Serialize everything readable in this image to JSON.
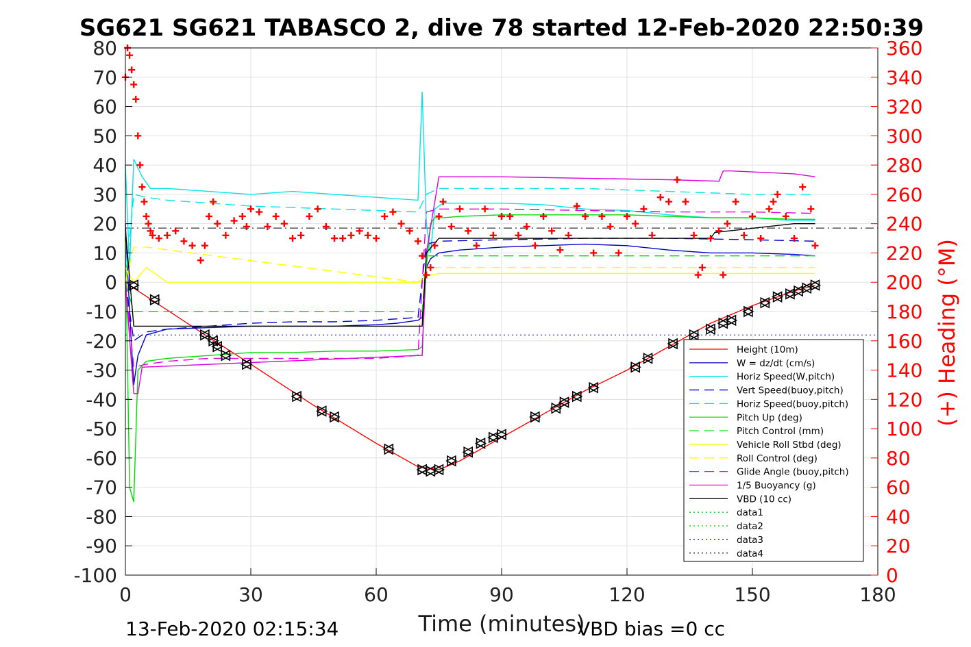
{
  "chart_data": {
    "type": "line",
    "title": "SG621 SG621 TABASCO 2, dive 78 started 12-Feb-2020 22:50:39",
    "xlabel": "Time (minutes)",
    "ylabel_right": "(+) Heading (°M)",
    "footer_left": "13-Feb-2020 02:15:34",
    "footer_right": "VBD bias =0 cc",
    "xlim": [
      0,
      180
    ],
    "ylim": [
      -100,
      80
    ],
    "ylim_right": [
      0,
      360
    ],
    "x_ticks": [
      "0",
      "30",
      "60",
      "90",
      "120",
      "150",
      "180"
    ],
    "y_ticks": [
      "80",
      "70",
      "60",
      "50",
      "40",
      "30",
      "20",
      "10",
      "0",
      "-10",
      "-20",
      "-30",
      "-40",
      "-50",
      "-60",
      "-70",
      "-80",
      "-90",
      "-100"
    ],
    "y_ticks_right": [
      "360",
      "340",
      "320",
      "300",
      "280",
      "260",
      "240",
      "220",
      "200",
      "180",
      "160",
      "140",
      "120",
      "100",
      "80",
      "60",
      "40",
      "20",
      "0"
    ],
    "grid": true,
    "legend_position": "bottom-right",
    "series": [
      {
        "name": "Height (10m)",
        "color": "#ff0000",
        "style": "solid",
        "x": [
          0,
          2,
          18,
          30,
          45,
          60,
          70,
          75,
          80,
          90,
          100,
          110,
          120,
          130,
          140,
          150,
          160,
          165
        ],
        "y": [
          0,
          -2,
          -17,
          -28,
          -42,
          -55,
          -63,
          -64,
          -61,
          -53,
          -45,
          -37,
          -30,
          -22,
          -14,
          -8,
          -3,
          -1
        ]
      },
      {
        "name": "W = dz/dt (cm/s)",
        "color": "#0000cc",
        "style": "solid",
        "x": [
          0,
          1,
          2,
          3,
          5,
          10,
          20,
          30,
          40,
          50,
          60,
          65,
          70,
          71,
          72,
          73,
          75,
          80,
          90,
          100,
          110,
          120,
          130,
          140,
          150,
          160,
          165
        ],
        "y": [
          20,
          -10,
          -35,
          -25,
          -18,
          -16,
          -15.5,
          -15,
          -15,
          -15,
          -14.5,
          -14,
          -13,
          -12,
          5,
          8,
          10,
          11,
          12,
          12.5,
          13,
          12.5,
          11,
          10,
          10,
          9.5,
          9
        ]
      },
      {
        "name": "Horiz Speed(W,pitch)",
        "color": "#00e5e5",
        "style": "solid",
        "x": [
          0,
          1,
          2,
          4,
          6,
          10,
          20,
          30,
          40,
          50,
          60,
          70,
          71,
          72,
          73,
          74,
          76,
          80,
          90,
          100,
          110,
          120,
          130,
          140,
          150,
          160,
          165
        ],
        "y": [
          40,
          5,
          42,
          36,
          32,
          32,
          31,
          30,
          31,
          30,
          29,
          28,
          65,
          20,
          10,
          25,
          27,
          27,
          27,
          26.5,
          25,
          24.5,
          23,
          22,
          22,
          21,
          21
        ]
      },
      {
        "name": "Vert Speed(buoy,pitch)",
        "color": "#0000cc",
        "style": "dashed",
        "x": [
          0,
          2,
          5,
          10,
          20,
          30,
          40,
          50,
          60,
          70,
          72,
          75,
          90,
          110,
          130,
          150,
          165
        ],
        "y": [
          0,
          -20,
          -17,
          -16,
          -15,
          -14,
          -13.5,
          -13.5,
          -13,
          -12,
          13,
          14,
          14.5,
          15,
          15,
          14.5,
          14
        ]
      },
      {
        "name": "Horiz Speed(buoy,pitch)",
        "color": "#00e5e5",
        "style": "dashed",
        "x": [
          0,
          2,
          5,
          10,
          20,
          30,
          40,
          50,
          60,
          70,
          72,
          75,
          90,
          110,
          130,
          150,
          165
        ],
        "y": [
          0,
          30,
          29,
          28,
          27,
          26,
          25.5,
          25,
          24.5,
          24,
          30,
          32,
          32,
          32,
          31,
          30,
          30
        ]
      },
      {
        "name": "Pitch Up (deg)",
        "color": "#00dd00",
        "style": "solid",
        "x": [
          0,
          1,
          2,
          3,
          5,
          10,
          20,
          30,
          40,
          50,
          60,
          70,
          71,
          72,
          73,
          74,
          76,
          80,
          90,
          100,
          110,
          120,
          130,
          140,
          150,
          160,
          165
        ],
        "y": [
          15,
          -70,
          -75,
          -30,
          -27,
          -26,
          -25,
          -24,
          -24,
          -23.5,
          -23.5,
          -23,
          -22,
          5,
          20,
          22,
          22,
          22.5,
          23,
          23,
          23,
          23,
          22.5,
          22,
          22,
          21.5,
          21.5
        ]
      },
      {
        "name": "Pitch Control (mm)",
        "color": "#00dd00",
        "style": "dashed",
        "x": [
          0,
          2,
          5,
          70,
          71,
          72,
          75,
          165
        ],
        "y": [
          0,
          -10,
          -10,
          -10,
          -10,
          9,
          9,
          9
        ]
      },
      {
        "name": "Vehicle Roll Stbd (deg)",
        "color": "#ffff00",
        "style": "solid",
        "x": [
          0,
          2,
          5,
          10,
          20,
          30,
          40,
          50,
          60,
          70,
          72,
          75,
          90,
          110,
          130,
          150,
          165
        ],
        "y": [
          5,
          0,
          5,
          0,
          0,
          0,
          0,
          0,
          0,
          0,
          2,
          3,
          3,
          3,
          3,
          3,
          3
        ]
      },
      {
        "name": "Roll Control (deg)",
        "color": "#ffff00",
        "style": "dashed",
        "x": [
          0,
          2,
          5,
          70,
          71,
          72,
          75,
          165
        ],
        "y": [
          0,
          12,
          12,
          0,
          0,
          5,
          5,
          5
        ]
      },
      {
        "name": "Glide Angle (buoy,pitch)",
        "color": "#dd00dd",
        "style": "dashed",
        "x": [
          0,
          2,
          5,
          10,
          20,
          30,
          40,
          50,
          60,
          70,
          72,
          75,
          90,
          110,
          130,
          150,
          165
        ],
        "y": [
          0,
          -29,
          -28,
          -27,
          -26,
          -26,
          -26,
          -26,
          -26,
          -25,
          24,
          25,
          25,
          24.5,
          24,
          24,
          23.5
        ]
      },
      {
        "name": "1/5 Buoyancy (g)",
        "color": "#dd00dd",
        "style": "solid",
        "x": [
          0,
          2,
          3,
          4,
          70,
          71,
          72,
          75,
          90,
          110,
          130,
          142,
          143,
          145,
          160,
          165
        ],
        "y": [
          0,
          -38,
          -38,
          -29,
          -25,
          -25,
          10,
          36,
          36,
          35.5,
          35,
          34.5,
          38,
          38,
          37,
          36
        ]
      },
      {
        "name": "VBD (10 cc)",
        "color": "#000000",
        "style": "solid",
        "x": [
          0,
          2,
          3,
          70,
          71,
          72,
          75,
          140,
          141,
          160,
          165
        ],
        "y": [
          18,
          -15,
          -15,
          -15,
          -15,
          10,
          15,
          15,
          17,
          20,
          20
        ]
      },
      {
        "name": "data1",
        "color": "#00dd00",
        "style": "dotted",
        "x": [],
        "y": []
      },
      {
        "name": "data2",
        "color": "#00dd00",
        "style": "dotted",
        "x": [],
        "y": []
      },
      {
        "name": "data3",
        "color": "#000088",
        "style": "dotted",
        "x": [],
        "y": []
      },
      {
        "name": "data4",
        "color": "#000088",
        "style": "dotted",
        "x": [],
        "y": []
      }
    ],
    "reference_lines": [
      {
        "color": "#000000",
        "style": "dashdot",
        "y": 18.5
      },
      {
        "color": "#0000cc",
        "style": "dotted",
        "y": -18
      }
    ],
    "heading": {
      "axis": "right",
      "color": "#ff0000",
      "marker": "+",
      "x": [
        0,
        0.5,
        1,
        1.5,
        2,
        2.5,
        3,
        3.5,
        4,
        4.5,
        5,
        5.5,
        6,
        6.5,
        8,
        10,
        12,
        14,
        16,
        18,
        19,
        20,
        21,
        22,
        24,
        26,
        28,
        29,
        30,
        32,
        34,
        36,
        38,
        40,
        42,
        44,
        46,
        48,
        50,
        52,
        54,
        56,
        58,
        60,
        62,
        64,
        66,
        68,
        70,
        71,
        72,
        73,
        74,
        75,
        76,
        78,
        80,
        82,
        84,
        86,
        88,
        90,
        92,
        94,
        96,
        98,
        100,
        102,
        104,
        106,
        108,
        110,
        112,
        114,
        116,
        118,
        120,
        122,
        124,
        126,
        128,
        130,
        132,
        134,
        136,
        137,
        138,
        140,
        142,
        143,
        144,
        146,
        148,
        150,
        152,
        154,
        155,
        156,
        158,
        160,
        162,
        164,
        165
      ],
      "y": [
        340,
        360,
        355,
        345,
        335,
        325,
        300,
        280,
        265,
        255,
        245,
        240,
        235,
        232,
        230,
        232,
        235,
        228,
        225,
        215,
        225,
        245,
        255,
        240,
        232,
        242,
        245,
        238,
        250,
        248,
        238,
        245,
        240,
        230,
        232,
        245,
        250,
        238,
        230,
        230,
        232,
        235,
        232,
        230,
        245,
        248,
        240,
        235,
        228,
        218,
        205,
        210,
        225,
        245,
        255,
        238,
        250,
        235,
        225,
        250,
        232,
        245,
        245,
        232,
        238,
        225,
        245,
        235,
        222,
        232,
        252,
        245,
        220,
        245,
        238,
        220,
        245,
        240,
        250,
        232,
        258,
        255,
        270,
        255,
        232,
        205,
        210,
        230,
        235,
        205,
        240,
        255,
        232,
        245,
        230,
        250,
        255,
        260,
        245,
        230,
        265,
        250,
        225
      ]
    },
    "depth_markers": {
      "x": [
        2,
        7,
        19,
        21,
        22,
        24,
        29,
        41,
        47,
        50,
        63,
        71,
        73,
        75,
        78,
        82,
        85,
        88,
        90,
        98,
        103,
        105,
        108,
        112,
        122,
        125,
        131,
        136,
        140,
        143,
        145,
        149,
        153,
        156,
        159,
        161,
        163,
        165
      ],
      "y": [
        -1,
        -6,
        -18,
        -20,
        -22,
        -25,
        -28,
        -39,
        -44,
        -46,
        -57,
        -64,
        -64.5,
        -64,
        -61,
        -58,
        -55,
        -53,
        -52,
        -46,
        -43,
        -41,
        -39,
        -36,
        -29,
        -26,
        -21,
        -18,
        -16,
        -14,
        -13,
        -10,
        -7,
        -5,
        -4,
        -3,
        -2,
        -1
      ]
    }
  }
}
